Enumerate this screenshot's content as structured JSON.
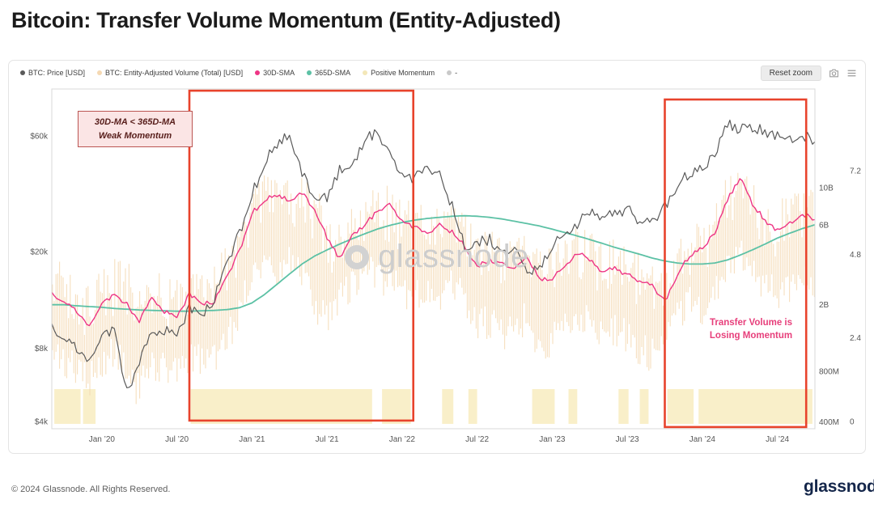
{
  "page": {
    "title": "Bitcoin: Transfer Volume Momentum (Entity-Adjusted)",
    "footer_copyright": "© 2024 Glassnode. All Rights Reserved.",
    "footer_logo_text": "glassnode"
  },
  "toolbar": {
    "reset_zoom_label": "Reset zoom"
  },
  "legend": {
    "items": [
      {
        "label": "BTC: Price [USD]",
        "color": "#5a5a5a"
      },
      {
        "label": "BTC: Entity-Adjusted Volume (Total) [USD]",
        "color": "#f5d9b3"
      },
      {
        "label": "30D-SMA",
        "color": "#ee3585"
      },
      {
        "label": "365D-SMA",
        "color": "#5cc1a5"
      },
      {
        "label": "Positive Momentum",
        "color": "#f3e7b8"
      },
      {
        "label": "-",
        "color": "#c9c9c9"
      }
    ]
  },
  "watermark": {
    "text": "glassnode"
  },
  "annotations": {
    "weak_momentum": {
      "line1": "30D-MA < 365D-MA",
      "line2": "Weak Momentum",
      "bg": "#fbe5e5",
      "border": "#bb5552",
      "text_color": "#59201d"
    },
    "losing_momentum": {
      "line1": "Transfer Volume is",
      "line2": "Losing Momentum",
      "color": "#e73f7b"
    }
  },
  "chart_data": {
    "type": "line",
    "title": "Bitcoin: Transfer Volume Momentum (Entity-Adjusted)",
    "x_unit": "month",
    "x_range": {
      "start": "2019-09",
      "end": "2024-10",
      "months_total": 62
    },
    "x_ticks": {
      "labels": [
        "Jan ’20",
        "Jul ’20",
        "Jan ’21",
        "Jul ’21",
        "Jan ’22",
        "Jul ’22",
        "Jan ’23",
        "Jul ’23",
        "Jan ’24",
        "Jul ’24"
      ],
      "month_index": [
        4,
        10,
        16,
        22,
        28,
        34,
        40,
        46,
        52,
        58
      ]
    },
    "axes": {
      "left_price_usd": {
        "scale": "log",
        "tick_labels": [
          "$60k",
          "$20k",
          "$8k",
          "$4k"
        ],
        "tick_values": [
          60000,
          20000,
          8000,
          4000
        ]
      },
      "right_volume_usd": {
        "scale": "log",
        "tick_labels": [
          "10B",
          "6B",
          "2B",
          "800M",
          "400M"
        ],
        "tick_values_billions": [
          10,
          6,
          2,
          0.8,
          0.4
        ]
      },
      "right_numeric": {
        "scale": "linear",
        "tick_labels": [
          "7.2",
          "4.8",
          "2.4",
          "0"
        ],
        "tick_values": [
          7.2,
          4.8,
          2.4,
          0
        ]
      }
    },
    "series": [
      {
        "name": "BTC: Price [USD]",
        "axis": "left_price_usd",
        "color": "#5a5a5a",
        "values_usd": [
          9600,
          8900,
          7800,
          7200,
          8800,
          9600,
          5200,
          7100,
          9200,
          9300,
          9200,
          11600,
          10700,
          12900,
          17500,
          24000,
          34000,
          47000,
          55000,
          60000,
          42000,
          34000,
          33000,
          44000,
          45000,
          58000,
          62000,
          49000,
          40000,
          40000,
          43000,
          41500,
          30500,
          21000,
          22000,
          22500,
          19500,
          19800,
          16800,
          16800,
          21500,
          23800,
          26000,
          29000,
          27200,
          28500,
          29800,
          27000,
          26500,
          31000,
          37000,
          43000,
          43000,
          51000,
          68000,
          64000,
          64500,
          63000,
          61000,
          59000,
          61000,
          56000
        ]
      },
      {
        "name": "30D-SMA",
        "axis": "right_volume_usd",
        "color": "#ee3585",
        "values_billions": [
          2.3,
          2.1,
          1.8,
          1.5,
          2.0,
          2.3,
          2.0,
          1.6,
          2.2,
          1.8,
          1.7,
          2.3,
          2.0,
          2.1,
          2.9,
          4.2,
          7.0,
          8.5,
          9.0,
          8.3,
          9.3,
          7.5,
          5.0,
          3.8,
          5.2,
          6.0,
          7.2,
          7.8,
          6.2,
          5.8,
          5.2,
          6.0,
          5.4,
          4.5,
          3.4,
          3.7,
          3.5,
          3.2,
          3.9,
          2.8,
          2.9,
          3.4,
          4.1,
          3.7,
          3.1,
          3.3,
          3.0,
          2.8,
          2.6,
          2.1,
          3.0,
          4.0,
          4.3,
          5.4,
          8.5,
          11.5,
          8.0,
          6.4,
          5.6,
          6.2,
          7.0,
          6.4
        ]
      },
      {
        "name": "365D-SMA",
        "axis": "right_volume_usd",
        "color": "#5cc1a5",
        "values_billions": [
          2.0,
          2.0,
          1.97,
          1.95,
          1.93,
          1.9,
          1.88,
          1.86,
          1.85,
          1.84,
          1.83,
          1.83,
          1.84,
          1.85,
          1.87,
          1.92,
          2.05,
          2.3,
          2.65,
          3.05,
          3.5,
          3.9,
          4.25,
          4.6,
          4.95,
          5.3,
          5.65,
          5.95,
          6.2,
          6.4,
          6.55,
          6.65,
          6.75,
          6.8,
          6.75,
          6.65,
          6.5,
          6.3,
          6.1,
          5.9,
          5.65,
          5.4,
          5.15,
          4.9,
          4.65,
          4.4,
          4.2,
          4.0,
          3.8,
          3.65,
          3.55,
          3.5,
          3.5,
          3.55,
          3.7,
          3.95,
          4.25,
          4.6,
          5.0,
          5.35,
          5.7,
          6.0
        ]
      }
    ],
    "volume_envelope": {
      "name": "BTC: Entity-Adjusted Volume (Total) [USD]",
      "axis": "right_volume_usd",
      "color": "#f5d9b3",
      "low_billions": [
        1.0,
        0.9,
        0.8,
        0.7,
        0.9,
        1.0,
        0.8,
        0.6,
        0.9,
        0.8,
        0.8,
        1.0,
        0.9,
        0.9,
        1.2,
        1.8,
        3.0,
        3.5,
        3.2,
        3.5,
        3.0,
        2.0,
        1.6,
        2.2,
        2.5,
        3.0,
        3.2,
        2.6,
        2.4,
        2.2,
        2.5,
        2.3,
        2.6,
        2.2,
        1.5,
        1.6,
        1.4,
        1.3,
        1.7,
        1.1,
        1.2,
        1.5,
        1.8,
        1.5,
        1.3,
        1.4,
        1.3,
        1.1,
        1.0,
        1.3,
        1.7,
        2.0,
        1.8,
        2.2,
        3.2,
        4.0,
        3.4,
        2.6,
        2.2,
        2.5,
        2.8,
        2.6
      ],
      "high_billions": [
        3.8,
        3.5,
        3.0,
        2.6,
        3.4,
        3.8,
        4.2,
        2.8,
        3.6,
        3.0,
        2.8,
        3.8,
        3.2,
        3.4,
        4.8,
        7.0,
        10.0,
        12.0,
        11.0,
        11.5,
        12.0,
        10.5,
        7.5,
        6.0,
        8.0,
        9.0,
        10.5,
        11.0,
        9.0,
        8.5,
        7.8,
        8.8,
        8.0,
        7.0,
        5.2,
        5.6,
        5.3,
        4.9,
        5.9,
        4.3,
        4.5,
        5.2,
        6.2,
        5.6,
        4.7,
        5.0,
        4.6,
        4.2,
        3.9,
        3.3,
        4.6,
        6.0,
        6.5,
        8.0,
        12.5,
        14.0,
        12.0,
        9.5,
        8.5,
        9.3,
        10.5,
        9.6
      ]
    },
    "positive_momentum_bands_months": [
      [
        0.2,
        2.3
      ],
      [
        2.5,
        3.5
      ],
      [
        11.1,
        25.6
      ],
      [
        26.4,
        28.7
      ],
      [
        31.2,
        32.1
      ],
      [
        33.3,
        34.0
      ],
      [
        38.4,
        40.2
      ],
      [
        41.3,
        42.0
      ],
      [
        45.3,
        46.1
      ],
      [
        47.0,
        47.7
      ],
      [
        49.2,
        51.3
      ],
      [
        51.7,
        60.8
      ]
    ],
    "momentum_band_color": "#f9efc9",
    "highlight_boxes": [
      {
        "x0_month": 11.0,
        "x1_month": 28.9,
        "y0_frac": 0.005,
        "y1_frac": 0.976
      },
      {
        "x0_month": 49.0,
        "x1_month": 60.3,
        "y0_frac": 0.031,
        "y1_frac": 0.995
      }
    ],
    "highlight_box_color": "#e8432c"
  }
}
